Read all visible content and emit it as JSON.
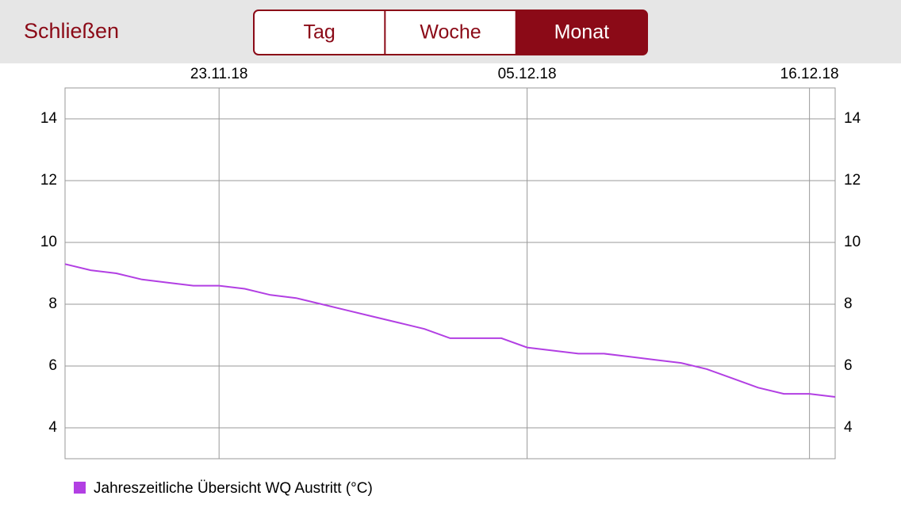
{
  "header": {
    "close": "Schließen",
    "segments": [
      "Tag",
      "Woche",
      "Monat"
    ],
    "selected_index": 2
  },
  "chart_data": {
    "type": "line",
    "x": [
      "17.11.18",
      "18.11.18",
      "19.11.18",
      "20.11.18",
      "21.11.18",
      "22.11.18",
      "23.11.18",
      "24.11.18",
      "25.11.18",
      "26.11.18",
      "27.11.18",
      "28.11.18",
      "29.11.18",
      "30.11.18",
      "01.12.18",
      "02.12.18",
      "03.12.18",
      "04.12.18",
      "05.12.18",
      "06.12.18",
      "07.12.18",
      "08.12.18",
      "09.12.18",
      "10.12.18",
      "11.12.18",
      "12.12.18",
      "13.12.18",
      "14.12.18",
      "15.12.18",
      "16.12.18",
      "17.12.18"
    ],
    "series": [
      {
        "name": "Jahreszeitliche Übersicht WQ Austritt (°C)",
        "color": "#b23fe3",
        "values": [
          9.3,
          9.1,
          9.0,
          8.8,
          8.7,
          8.6,
          8.6,
          8.5,
          8.3,
          8.2,
          8.0,
          7.8,
          7.6,
          7.4,
          7.2,
          6.9,
          6.9,
          6.9,
          6.6,
          6.5,
          6.4,
          6.4,
          6.3,
          6.2,
          6.1,
          5.9,
          5.6,
          5.3,
          5.1,
          5.1,
          5.0
        ]
      }
    ],
    "xlim": [
      "17.11.18",
      "17.12.18"
    ],
    "xticks": [
      "23.11.18",
      "05.12.18",
      "16.12.18"
    ],
    "ylim": [
      3,
      15
    ],
    "yticks": [
      4,
      6,
      8,
      10,
      12,
      14
    ],
    "grid": true
  }
}
